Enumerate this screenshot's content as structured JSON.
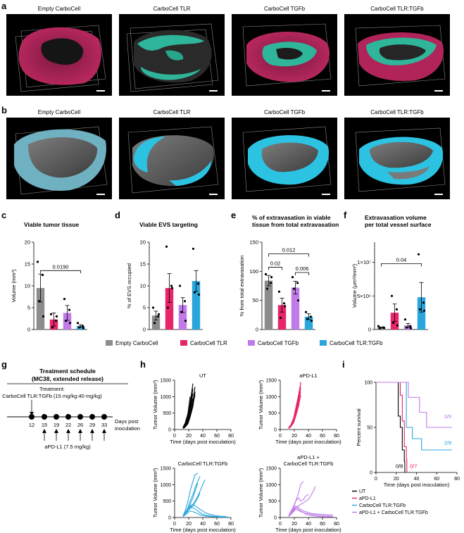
{
  "panels": {
    "a": "a",
    "b": "b",
    "c": "c",
    "d": "d",
    "e": "e",
    "f": "f",
    "g": "g",
    "h": "h",
    "i": "i"
  },
  "image_rows": {
    "titles": [
      "Empty CarboCell",
      "CarboCell TLR",
      "CarboCell TGFb",
      "CarboCell TLR:TGFb"
    ]
  },
  "colors": {
    "empty": "#8c8c8c",
    "tlr": "#e8246a",
    "tgfb": "#c07be8",
    "combo": "#2aa6dc",
    "black": "#000000",
    "tissue_magenta": "#b0245a",
    "tissue_teal": "#2fb59a",
    "vessel_cyan": "#2cc3e3"
  },
  "legend": [
    "Empty CarboCell",
    "CarboCell TLR",
    "CarboCell TGFb",
    "CarboCell TLR:TGFb"
  ],
  "chart_data": [
    {
      "panel": "c",
      "type": "bar",
      "title": "Viable tumor tissue",
      "ylabel": "Volume (mm³)",
      "ylim": [
        0,
        20
      ],
      "yticks": [
        0,
        5,
        10,
        15,
        20
      ],
      "categories": [
        "Empty CarboCell",
        "CarboCell TLR",
        "CarboCell TGFb",
        "CarboCell TLR:TGFb"
      ],
      "values": [
        9.5,
        2.3,
        3.8,
        0.8
      ],
      "sem": [
        3.2,
        1.5,
        1.7,
        0.3
      ],
      "points": [
        [
          15.5,
          12.5,
          6.5,
          3
        ],
        [
          3.5,
          2,
          0.5,
          3
        ],
        [
          7,
          4.5,
          2,
          1.5
        ],
        [
          1.5,
          0.8,
          0.5,
          0.3
        ]
      ],
      "brackets": [
        {
          "from": 0,
          "to": 3,
          "y": 13.5,
          "label": "0.0190"
        }
      ]
    },
    {
      "panel": "d",
      "type": "bar",
      "title": "Viable EVS targeting",
      "ylabel": "% of EVS occupied",
      "ylim": [
        0,
        20
      ],
      "yticks": [
        0,
        5,
        10,
        15,
        20
      ],
      "categories": [
        "Empty CarboCell",
        "CarboCell TLR",
        "CarboCell TGFb",
        "CarboCell TLR:TGFb"
      ],
      "values": [
        3.2,
        9.5,
        5.6,
        11.1
      ],
      "sem": [
        1,
        3.3,
        1.7,
        2.4
      ],
      "points": [
        [
          5,
          3,
          1.5,
          3.5
        ],
        [
          19,
          10,
          5,
          9.5
        ],
        [
          10,
          6.5,
          4,
          2
        ],
        [
          18.5,
          10.5,
          8.5,
          8
        ]
      ],
      "brackets": []
    },
    {
      "panel": "e",
      "type": "bar",
      "title": "% of extravasation in viable tissue from total extravasation",
      "ylabel": "% from total extravasation",
      "ylim": [
        0,
        150
      ],
      "yticks": [
        0,
        50,
        100,
        150
      ],
      "categories": [
        "Empty CarboCell",
        "CarboCell TLR",
        "CarboCell TGFb",
        "CarboCell TLR:TGFb"
      ],
      "values": [
        84,
        42,
        72,
        22
      ],
      "sem": [
        9,
        12,
        11,
        5
      ],
      "points": [
        [
          95,
          80,
          70,
          90
        ],
        [
          65,
          45,
          20,
          40
        ],
        [
          90,
          80,
          70,
          50
        ],
        [
          30,
          22,
          18,
          15
        ]
      ],
      "brackets": [
        {
          "from": 0,
          "to": 1,
          "y": 107,
          "label": "0.02"
        },
        {
          "from": 2,
          "to": 3,
          "y": 98,
          "label": "0.006"
        },
        {
          "from": 0,
          "to": 3,
          "y": 130,
          "label": "0.012"
        }
      ]
    },
    {
      "panel": "f",
      "type": "bar",
      "title": "Extravasation volume per total vessel surface",
      "ylabel": "Volume (μm³/mm²)",
      "ylim": [
        0,
        13000000
      ],
      "yticks": [
        0,
        5000000,
        10000000
      ],
      "ytick_labels": [
        "0",
        "5×10⁶",
        "1×10⁷"
      ],
      "categories": [
        "Empty CarboCell",
        "CarboCell TLR",
        "CarboCell TGFb",
        "CarboCell TLR:TGFb"
      ],
      "values": [
        300000,
        2500000,
        600000,
        4800000
      ],
      "sem": [
        80000,
        1300000,
        300000,
        2200000
      ],
      "points": [
        [
          500000,
          300000,
          200000,
          250000
        ],
        [
          5000000,
          3000000,
          1000000,
          600000
        ],
        [
          1500000,
          500000,
          300000,
          200000
        ],
        [
          11200000,
          4000000,
          3000000,
          2800000
        ]
      ],
      "brackets": [
        {
          "from": 0,
          "to": 3,
          "y": 9800000,
          "label": "0.04"
        }
      ]
    },
    {
      "panel": "h-UT",
      "type": "line",
      "title": "UT",
      "xlabel": "Time (days post inoculation)",
      "ylabel": "Tumor Volume (mm³)",
      "xlim": [
        0,
        80
      ],
      "ylim": [
        0,
        1500
      ],
      "xticks": [
        0,
        20,
        40,
        60,
        80
      ],
      "yticks": [
        0,
        500,
        1000,
        1500
      ],
      "color": "#000000",
      "series": [
        {
          "x": [
            12,
            15,
            19,
            22,
            26
          ],
          "y": [
            40,
            120,
            350,
            700,
            1250
          ]
        },
        {
          "x": [
            12,
            15,
            19,
            22,
            26
          ],
          "y": [
            60,
            150,
            400,
            800,
            1400
          ]
        },
        {
          "x": [
            12,
            15,
            19,
            22,
            26,
            29
          ],
          "y": [
            30,
            90,
            250,
            500,
            850,
            1300
          ]
        },
        {
          "x": [
            12,
            15,
            19,
            22,
            26
          ],
          "y": [
            50,
            130,
            320,
            650,
            1100
          ]
        },
        {
          "x": [
            12,
            15,
            19,
            22,
            26,
            29
          ],
          "y": [
            40,
            80,
            200,
            420,
            780,
            1050
          ]
        },
        {
          "x": [
            12,
            15,
            19,
            22
          ],
          "y": [
            70,
            200,
            500,
            1000
          ]
        },
        {
          "x": [
            12,
            15,
            19,
            22,
            26
          ],
          "y": [
            45,
            110,
            300,
            600,
            950
          ]
        },
        {
          "x": [
            12,
            15,
            19,
            22,
            26,
            29
          ],
          "y": [
            35,
            70,
            180,
            380,
            700,
            1150
          ]
        }
      ]
    },
    {
      "panel": "h-aPD-L1",
      "type": "line",
      "title": "aPD-L1",
      "xlabel": "Time (days post inoculation)",
      "ylabel": "Tumor Volume (mm³)",
      "xlim": [
        0,
        80
      ],
      "ylim": [
        0,
        1500
      ],
      "xticks": [
        0,
        20,
        40,
        60,
        80
      ],
      "yticks": [
        0,
        500,
        1000,
        1500
      ],
      "color": "#e8246a",
      "series": [
        {
          "x": [
            12,
            15,
            19,
            22,
            26,
            29
          ],
          "y": [
            40,
            100,
            250,
            500,
            900,
            1450
          ]
        },
        {
          "x": [
            12,
            15,
            19,
            22,
            26,
            29
          ],
          "y": [
            50,
            120,
            300,
            600,
            1000,
            1300
          ]
        },
        {
          "x": [
            12,
            15,
            19,
            22,
            26,
            29
          ],
          "y": [
            30,
            80,
            220,
            450,
            800,
            1150
          ]
        },
        {
          "x": [
            12,
            15,
            19,
            22,
            26,
            29
          ],
          "y": [
            60,
            140,
            350,
            650,
            1050,
            1400
          ]
        },
        {
          "x": [
            12,
            15,
            19,
            22,
            26,
            29
          ],
          "y": [
            45,
            90,
            200,
            400,
            700,
            1050
          ]
        },
        {
          "x": [
            12,
            15,
            19,
            22,
            26,
            29
          ],
          "y": [
            35,
            110,
            280,
            550,
            880,
            1250
          ]
        },
        {
          "x": [
            12,
            15,
            19,
            22,
            26,
            29
          ],
          "y": [
            55,
            130,
            320,
            620,
            950,
            1000
          ]
        }
      ]
    },
    {
      "panel": "h-combo",
      "type": "line",
      "title": "CarboCell TLR:TGFb",
      "xlabel": "Time (days post inoculation)",
      "ylabel": "Tumor Volume (mm³)",
      "xlim": [
        0,
        80
      ],
      "ylim": [
        0,
        1500
      ],
      "xticks": [
        0,
        20,
        40,
        60,
        80
      ],
      "yticks": [
        0,
        500,
        1000,
        1500
      ],
      "color": "#2aa6dc",
      "series": [
        {
          "x": [
            12,
            15,
            19,
            22,
            26,
            29,
            33
          ],
          "y": [
            60,
            200,
            500,
            800,
            1100,
            1300,
            1350
          ]
        },
        {
          "x": [
            12,
            15,
            19,
            22,
            26,
            29,
            33,
            36
          ],
          "y": [
            50,
            150,
            300,
            500,
            700,
            900,
            1100,
            1250
          ]
        },
        {
          "x": [
            12,
            15,
            19,
            22,
            26,
            29,
            33,
            36,
            40,
            43
          ],
          "y": [
            40,
            100,
            200,
            300,
            400,
            500,
            650,
            800,
            1000,
            1150
          ]
        },
        {
          "x": [
            12,
            15,
            19,
            22,
            26,
            29,
            33
          ],
          "y": [
            30,
            120,
            250,
            400,
            600,
            800,
            1050
          ]
        },
        {
          "x": [
            12,
            15,
            19,
            22,
            26,
            29,
            33,
            36
          ],
          "y": [
            40,
            110,
            200,
            300,
            350,
            450,
            600,
            750
          ]
        },
        {
          "x": [
            12,
            15,
            19,
            22,
            26,
            29,
            33,
            36,
            40,
            43,
            50,
            57,
            64,
            71,
            75
          ],
          "y": [
            50,
            150,
            250,
            350,
            400,
            350,
            300,
            250,
            200,
            150,
            100,
            60,
            40,
            30,
            20
          ]
        },
        {
          "x": [
            12,
            15,
            19,
            22,
            26,
            29,
            33,
            36,
            40,
            43,
            50,
            57,
            64,
            71,
            75
          ],
          "y": [
            40,
            120,
            200,
            280,
            300,
            250,
            200,
            150,
            100,
            80,
            50,
            30,
            20,
            15,
            10
          ]
        },
        {
          "x": [
            12,
            15,
            19,
            22,
            26,
            29,
            33,
            36,
            40,
            43,
            50,
            57,
            64,
            71,
            75
          ],
          "y": [
            30,
            80,
            150,
            200,
            180,
            150,
            120,
            80,
            60,
            40,
            30,
            20,
            10,
            10,
            5
          ]
        }
      ]
    },
    {
      "panel": "h-aPD-L1+combo",
      "type": "line",
      "title": "aPD-L1 + CarboCell TLR:TGFb",
      "xlabel": "Time (days post inoculation)",
      "ylabel": "Tumor Volume (mm³)",
      "xlim": [
        0,
        80
      ],
      "ylim": [
        0,
        1500
      ],
      "xticks": [
        0,
        20,
        40,
        60,
        80
      ],
      "yticks": [
        0,
        500,
        1000,
        1500
      ],
      "color": "#c07be8",
      "series": [
        {
          "x": [
            12,
            15,
            19,
            22,
            26,
            29,
            33
          ],
          "y": [
            50,
            150,
            300,
            500,
            750,
            1000,
            1100
          ]
        },
        {
          "x": [
            12,
            15,
            19,
            22,
            26,
            29,
            33,
            36,
            40,
            43,
            47,
            50
          ],
          "y": [
            40,
            100,
            200,
            300,
            350,
            400,
            450,
            500,
            550,
            650,
            800,
            950
          ]
        },
        {
          "x": [
            12,
            15,
            19,
            22,
            26,
            29,
            33,
            36,
            40
          ],
          "y": [
            60,
            180,
            350,
            500,
            600,
            500,
            550,
            650,
            700
          ]
        },
        {
          "x": [
            12,
            15,
            19,
            22,
            26,
            29,
            33,
            36,
            40,
            43,
            50,
            57,
            64,
            71,
            75
          ],
          "y": [
            40,
            120,
            250,
            350,
            300,
            250,
            200,
            180,
            150,
            130,
            110,
            100,
            90,
            80,
            80
          ]
        },
        {
          "x": [
            12,
            15,
            19,
            22,
            26,
            29,
            33,
            36,
            40,
            43,
            50,
            57,
            64,
            71,
            75
          ],
          "y": [
            30,
            90,
            180,
            250,
            220,
            180,
            150,
            130,
            120,
            100,
            80,
            60,
            50,
            40,
            30
          ]
        },
        {
          "x": [
            12,
            15,
            19,
            22,
            26,
            29,
            33,
            36,
            40,
            43,
            50,
            57,
            64,
            71,
            75
          ],
          "y": [
            50,
            130,
            220,
            300,
            250,
            200,
            150,
            100,
            80,
            60,
            40,
            30,
            20,
            20,
            20
          ]
        }
      ]
    },
    {
      "panel": "i",
      "type": "line",
      "chart_kind": "survival",
      "ylabel": "Percent survival",
      "xlabel": "Time (days post inoculation)",
      "xlim": [
        0,
        80
      ],
      "ylim": [
        0,
        100
      ],
      "xticks": [
        0,
        20,
        40,
        60,
        80
      ],
      "yticks": [
        0,
        50,
        100
      ],
      "series": [
        {
          "name": "UT",
          "color": "#000000",
          "x": [
            0,
            20,
            22,
            24,
            26,
            28,
            28.5
          ],
          "y": [
            100,
            100,
            62.5,
            50,
            25,
            12.5,
            0
          ]
        },
        {
          "name": "aPD-L1",
          "color": "#e8246a",
          "x": [
            0,
            22,
            24,
            26,
            28,
            30,
            30.5
          ],
          "y": [
            100,
            100,
            85.7,
            57.1,
            28.6,
            14.3,
            0
          ]
        },
        {
          "name": "CarboCell TLR:TGFb",
          "color": "#2aa6dc",
          "x": [
            0,
            26,
            30,
            36,
            45,
            75
          ],
          "y": [
            100,
            100,
            50,
            37.5,
            25,
            25
          ]
        },
        {
          "name": "aPD-L1 + CarboCell TLR:TGFb",
          "color": "#c07be8",
          "x": [
            0,
            29,
            32,
            43,
            50,
            75
          ],
          "y": [
            100,
            100,
            83.3,
            66.7,
            50,
            50
          ]
        }
      ],
      "annotations": [
        "3/6",
        "2/8",
        "0/8",
        "0/7"
      ]
    }
  ],
  "schedule": {
    "title_line1": "Treatment schedule",
    "title_line2": "(MC38, extended release)",
    "treatment_label": "Treatment:",
    "treatment_detail": "CarboCell TLR:TGFb (15 mg/kg:40 mg/kg)",
    "days": [
      "12",
      "15",
      "19",
      "22",
      "26",
      "29",
      "33"
    ],
    "axis_label_line1": "Days post",
    "axis_label_line2": "inoculation",
    "apd_label": "aPD-L1 (7.5 mg/kg)"
  }
}
